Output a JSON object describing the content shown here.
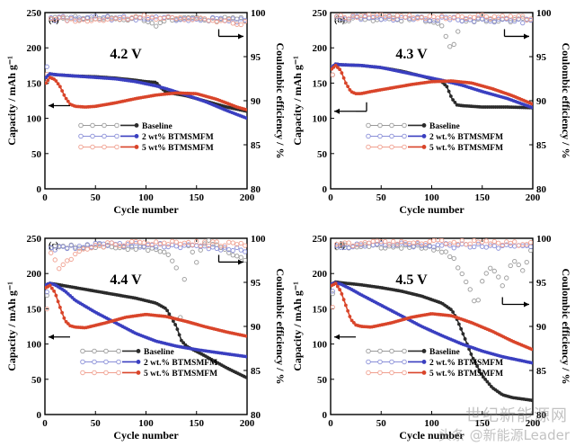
{
  "figure": {
    "axis_labels": {
      "ylabel_left": "Capacity / mAh g⁻¹",
      "ylabel_right": "Coulombic efficiency / %",
      "xlabel": "Cycle number"
    },
    "watermark": {
      "top": "世纪新能源网",
      "bottom": "头条 @新能源Leader"
    },
    "colors": {
      "baseline": "#2b2b2b",
      "series2": "#3a3fc0",
      "series3": "#d9452a",
      "ce_baseline": "#9a9a9a",
      "ce_series2": "#8a8fd8",
      "ce_series3": "#f0a090"
    }
  },
  "chart_data": [
    {
      "panel": "(a)",
      "type": "line",
      "annotation": "4.2 V",
      "xlabel": "Cycle number",
      "ylabel": "Capacity / mAh g⁻¹",
      "y2label": "Coulombic efficiency / %",
      "xlim": [
        0,
        200
      ],
      "ylim": [
        0,
        250
      ],
      "y2lim": [
        80,
        100
      ],
      "xticks": [
        0,
        50,
        100,
        150,
        200
      ],
      "yticks": [
        0,
        50,
        100,
        150,
        200,
        250
      ],
      "y2ticks": [
        80,
        85,
        90,
        95,
        100
      ],
      "legend": [
        "Baseline",
        "2 wt% BTMSMFM",
        "5 wt% BTMSMFM"
      ],
      "series": [
        {
          "name": "Baseline",
          "x": [
            1,
            5,
            10,
            20,
            30,
            50,
            70,
            90,
            100,
            110,
            115,
            120,
            140,
            160,
            180,
            200
          ],
          "values": [
            158,
            163,
            162,
            161,
            160,
            159,
            157,
            154,
            152,
            151,
            143,
            137,
            132,
            124,
            116,
            110
          ]
        },
        {
          "name": "2 wt% BTMSMFM",
          "x": [
            1,
            5,
            10,
            20,
            30,
            50,
            70,
            90,
            100,
            110,
            120,
            140,
            160,
            180,
            200
          ],
          "values": [
            158,
            163,
            162,
            161,
            160,
            158,
            156,
            152,
            149,
            146,
            142,
            133,
            123,
            111,
            100
          ]
        },
        {
          "name": "5 wt% BTMSMFM",
          "x": [
            1,
            5,
            10,
            15,
            20,
            25,
            30,
            40,
            50,
            70,
            90,
            110,
            130,
            150,
            170,
            190,
            200
          ],
          "values": [
            150,
            158,
            155,
            145,
            130,
            120,
            117,
            116,
            117,
            122,
            128,
            133,
            136,
            135,
            127,
            116,
            112
          ]
        }
      ],
      "efficiency": [
        {
          "name": "Baseline",
          "x": [
            1,
            5,
            20,
            50,
            100,
            110,
            120,
            140,
            200
          ],
          "values": [
            90,
            99.2,
            99.3,
            99.4,
            99.3,
            98.6,
            99.2,
            99.3,
            99.2
          ]
        },
        {
          "name": "2 wt% BTMSMFM",
          "x": [
            1,
            5,
            50,
            100,
            150,
            200
          ],
          "values": [
            92,
            99.3,
            99.4,
            99.3,
            99.3,
            99.1
          ]
        },
        {
          "name": "5 wt% BTMSMFM",
          "x": [
            1,
            5,
            50,
            100,
            150,
            200
          ],
          "values": [
            91,
            99.3,
            99.2,
            99.5,
            99.3,
            98.8
          ]
        }
      ]
    },
    {
      "panel": "(b)",
      "type": "line",
      "annotation": "4.3 V",
      "xlabel": "Cycle number",
      "ylabel": "Capacity / mAh g⁻¹",
      "y2label": "Coulombic efficiency / %",
      "xlim": [
        0,
        200
      ],
      "ylim": [
        0,
        250
      ],
      "y2lim": [
        80,
        100
      ],
      "xticks": [
        0,
        50,
        100,
        150,
        200
      ],
      "yticks": [
        0,
        50,
        100,
        150,
        200,
        250
      ],
      "y2ticks": [
        80,
        85,
        90,
        95,
        100
      ],
      "legend": [
        "Baseline",
        "2 wt.% BTMSMFM",
        "5 wt.% BTMSMFM"
      ],
      "series": [
        {
          "name": "Baseline",
          "x": [
            1,
            5,
            10,
            30,
            50,
            70,
            90,
            110,
            115,
            120,
            125,
            130,
            150,
            175,
            200
          ],
          "values": [
            172,
            177,
            176,
            175,
            172,
            167,
            160,
            152,
            145,
            128,
            119,
            118,
            116,
            116,
            115
          ]
        },
        {
          "name": "2 wt.% BTMSMFM",
          "x": [
            1,
            5,
            10,
            30,
            50,
            70,
            90,
            110,
            130,
            150,
            175,
            200
          ],
          "values": [
            172,
            177,
            176,
            175,
            172,
            166,
            160,
            154,
            147,
            138,
            128,
            115
          ]
        },
        {
          "name": "5 wt.% BTMSMFM",
          "x": [
            1,
            5,
            10,
            15,
            20,
            25,
            30,
            40,
            60,
            80,
            100,
            120,
            140,
            160,
            180,
            200
          ],
          "values": [
            170,
            175,
            168,
            150,
            138,
            135,
            135,
            138,
            143,
            148,
            152,
            153,
            150,
            142,
            132,
            120
          ]
        }
      ],
      "efficiency": [
        {
          "name": "Baseline",
          "x": [
            1,
            5,
            50,
            100,
            110,
            120,
            125,
            130,
            200
          ],
          "values": [
            91,
            99.2,
            99.3,
            99.2,
            98.5,
            95.5,
            97.5,
            99.0,
            99.2
          ]
        },
        {
          "name": "2 wt.% BTMSMFM",
          "x": [
            1,
            5,
            50,
            100,
            150,
            200
          ],
          "values": [
            92,
            99.3,
            99.4,
            99.3,
            99.2,
            99.0
          ]
        },
        {
          "name": "5 wt.% BTMSMFM",
          "x": [
            1,
            5,
            50,
            100,
            150,
            200
          ],
          "values": [
            91,
            99.5,
            99.6,
            99.5,
            99.5,
            99.4
          ]
        }
      ]
    },
    {
      "panel": "(c)",
      "type": "line",
      "annotation": "4.4 V",
      "xlabel": "Cycle number",
      "ylabel": "Capacity / mAh g⁻¹",
      "y2label": "Coulombic efficiency / %",
      "xlim": [
        0,
        200
      ],
      "ylim": [
        0,
        250
      ],
      "y2lim": [
        80,
        100
      ],
      "xticks": [
        0,
        50,
        100,
        150,
        200
      ],
      "yticks": [
        0,
        50,
        100,
        150,
        200,
        250
      ],
      "y2ticks": [
        80,
        85,
        90,
        95,
        100
      ],
      "legend": [
        "Baseline",
        "2 wt.% BTMSMFM",
        "5 wt.% BTMSMFM"
      ],
      "series": [
        {
          "name": "Baseline",
          "x": [
            1,
            5,
            10,
            30,
            50,
            70,
            90,
            110,
            120,
            130,
            135,
            140,
            160,
            180,
            200
          ],
          "values": [
            184,
            186,
            185,
            180,
            175,
            170,
            165,
            158,
            150,
            125,
            105,
            97,
            82,
            66,
            52
          ]
        },
        {
          "name": "2 wt.% BTMSMFM",
          "x": [
            1,
            5,
            10,
            20,
            30,
            50,
            70,
            90,
            110,
            130,
            150,
            170,
            200
          ],
          "values": [
            184,
            186,
            184,
            175,
            162,
            145,
            130,
            115,
            104,
            97,
            92,
            88,
            82
          ]
        },
        {
          "name": "5 wt.% BTMSMFM",
          "x": [
            1,
            5,
            10,
            15,
            20,
            25,
            30,
            40,
            60,
            80,
            100,
            120,
            140,
            160,
            180,
            200
          ],
          "values": [
            180,
            183,
            173,
            152,
            133,
            126,
            124,
            123,
            130,
            138,
            142,
            139,
            132,
            124,
            117,
            111
          ]
        }
      ],
      "efficiency": [
        {
          "name": "Baseline",
          "x": [
            1,
            5,
            50,
            100,
            120,
            130,
            135,
            140,
            150,
            160,
            180,
            200
          ],
          "values": [
            92,
            99.0,
            99.1,
            98.9,
            98.5,
            96.5,
            89.5,
            99.5,
            97.5,
            99.8,
            98.5,
            97.5
          ]
        },
        {
          "name": "2 wt.% BTMSMFM",
          "x": [
            1,
            5,
            50,
            100,
            150,
            200
          ],
          "values": [
            92,
            98.8,
            99.3,
            99.2,
            99.1,
            98.7
          ]
        },
        {
          "name": "5 wt.% BTMSMFM",
          "x": [
            1,
            5,
            15,
            25,
            40,
            60,
            100,
            150,
            200
          ],
          "values": [
            90,
            98.5,
            96.5,
            97.8,
            98.8,
            99.3,
            99.5,
            99.4,
            99.3
          ]
        }
      ]
    },
    {
      "panel": "(d)",
      "type": "line",
      "annotation": "4.5 V",
      "xlabel": "Cycle number",
      "ylabel": "Capacity / mAh g⁻¹",
      "y2label": "Coulombic efficiency / %",
      "xlim": [
        0,
        200
      ],
      "ylim": [
        0,
        250
      ],
      "y2lim": [
        80,
        100
      ],
      "xticks": [
        0,
        50,
        100,
        150,
        200
      ],
      "yticks": [
        0,
        50,
        100,
        150,
        200,
        250
      ],
      "y2ticks": [
        80,
        85,
        90,
        95,
        100
      ],
      "legend": [
        "Baseline",
        "2 wt.% BTMSMFM",
        "5 wt.% BTMSMFM"
      ],
      "series": [
        {
          "name": "Baseline",
          "x": [
            1,
            5,
            10,
            30,
            50,
            70,
            90,
            110,
            120,
            125,
            130,
            140,
            150,
            160,
            170,
            180,
            200
          ],
          "values": [
            185,
            188,
            187,
            184,
            180,
            175,
            168,
            158,
            148,
            135,
            118,
            82,
            55,
            38,
            28,
            24,
            20
          ]
        },
        {
          "name": "2 wt.% BTMSMFM",
          "x": [
            1,
            5,
            10,
            20,
            30,
            50,
            70,
            90,
            110,
            130,
            150,
            170,
            200
          ],
          "values": [
            185,
            187,
            185,
            178,
            170,
            155,
            140,
            125,
            112,
            100,
            90,
            82,
            73
          ]
        },
        {
          "name": "5 wt.% BTMSMFM",
          "x": [
            1,
            5,
            10,
            15,
            20,
            25,
            30,
            40,
            60,
            80,
            100,
            120,
            140,
            160,
            180,
            200
          ],
          "values": [
            183,
            186,
            175,
            155,
            135,
            127,
            125,
            124,
            130,
            138,
            143,
            140,
            130,
            118,
            104,
            92
          ]
        }
      ],
      "efficiency": [
        {
          "name": "Baseline",
          "x": [
            1,
            5,
            50,
            100,
            120,
            130,
            140,
            145,
            150,
            160,
            170,
            180,
            190,
            200
          ],
          "values": [
            92,
            99.0,
            99.1,
            99.0,
            98.0,
            96.0,
            93.5,
            92.5,
            95.0,
            97.0,
            94.5,
            97.5,
            96.5,
            99.0
          ]
        },
        {
          "name": "2 wt.% BTMSMFM",
          "x": [
            1,
            5,
            50,
            100,
            150,
            200
          ],
          "values": [
            92,
            99.0,
            99.3,
            99.2,
            99.1,
            99.0
          ]
        },
        {
          "name": "5 wt.% BTMSMFM",
          "x": [
            1,
            5,
            50,
            100,
            150,
            200
          ],
          "values": [
            90,
            99.3,
            99.5,
            99.6,
            99.5,
            99.3
          ]
        }
      ]
    }
  ]
}
